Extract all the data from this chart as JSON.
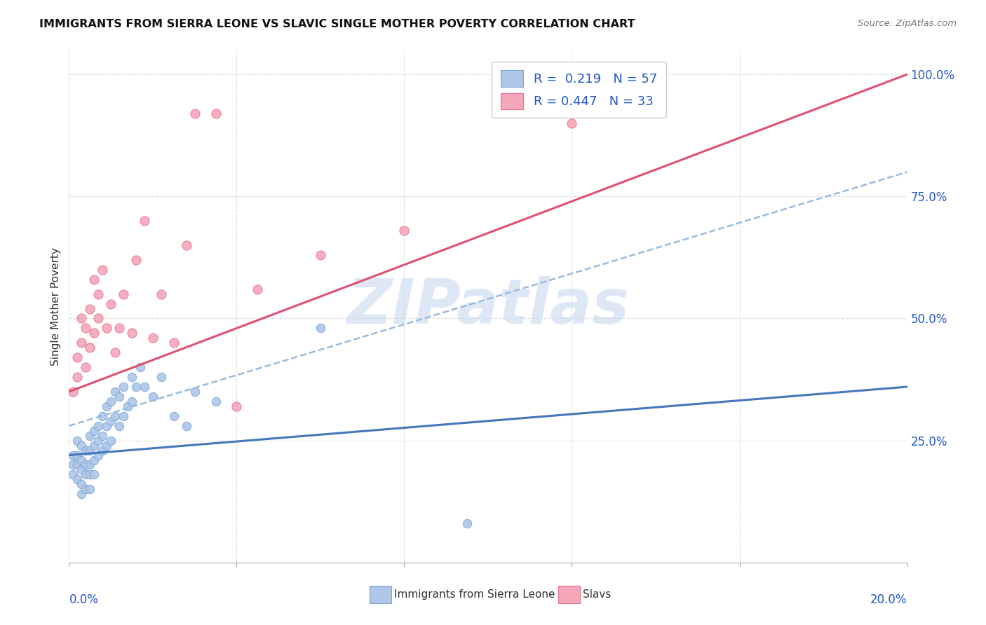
{
  "title": "IMMIGRANTS FROM SIERRA LEONE VS SLAVIC SINGLE MOTHER POVERTY CORRELATION CHART",
  "source": "Source: ZipAtlas.com",
  "ylabel": "Single Mother Poverty",
  "xlim": [
    0.0,
    0.2
  ],
  "ylim": [
    0.0,
    1.05
  ],
  "yticks": [
    0.25,
    0.5,
    0.75,
    1.0
  ],
  "ytick_labels": [
    "25.0%",
    "50.0%",
    "75.0%",
    "100.0%"
  ],
  "xtick_vals": [
    0.0,
    0.04,
    0.08,
    0.12,
    0.16,
    0.2
  ],
  "legend_line1": "R =  0.219   N = 57",
  "legend_line2": "R = 0.447   N = 33",
  "legend_color": "#2255cc",
  "watermark": "ZIPatlas",
  "watermark_color": "#c8d8f0",
  "series1_color": "#aec6e8",
  "series1_edge": "#7ba7d4",
  "series2_color": "#f4a7b9",
  "series2_edge": "#e87090",
  "trend1_color": "#4477bb",
  "trend2_color": "#e05070",
  "trend_dash_color": "#99bbdd",
  "blue_scatter_x": [
    0.001,
    0.001,
    0.001,
    0.002,
    0.002,
    0.002,
    0.002,
    0.003,
    0.003,
    0.003,
    0.003,
    0.003,
    0.004,
    0.004,
    0.004,
    0.004,
    0.005,
    0.005,
    0.005,
    0.005,
    0.005,
    0.006,
    0.006,
    0.006,
    0.006,
    0.007,
    0.007,
    0.007,
    0.008,
    0.008,
    0.008,
    0.009,
    0.009,
    0.009,
    0.01,
    0.01,
    0.01,
    0.011,
    0.011,
    0.012,
    0.012,
    0.013,
    0.013,
    0.014,
    0.015,
    0.015,
    0.016,
    0.017,
    0.018,
    0.02,
    0.022,
    0.025,
    0.028,
    0.03,
    0.035,
    0.06,
    0.095
  ],
  "blue_scatter_y": [
    0.22,
    0.2,
    0.18,
    0.25,
    0.22,
    0.2,
    0.17,
    0.24,
    0.21,
    0.19,
    0.16,
    0.14,
    0.23,
    0.2,
    0.18,
    0.15,
    0.26,
    0.23,
    0.2,
    0.18,
    0.15,
    0.27,
    0.24,
    0.21,
    0.18,
    0.28,
    0.25,
    0.22,
    0.3,
    0.26,
    0.23,
    0.32,
    0.28,
    0.24,
    0.33,
    0.29,
    0.25,
    0.35,
    0.3,
    0.34,
    0.28,
    0.36,
    0.3,
    0.32,
    0.38,
    0.33,
    0.36,
    0.4,
    0.36,
    0.34,
    0.38,
    0.3,
    0.28,
    0.35,
    0.33,
    0.48,
    0.08
  ],
  "pink_scatter_x": [
    0.001,
    0.002,
    0.002,
    0.003,
    0.003,
    0.004,
    0.004,
    0.005,
    0.005,
    0.006,
    0.006,
    0.007,
    0.007,
    0.008,
    0.009,
    0.01,
    0.011,
    0.012,
    0.013,
    0.015,
    0.016,
    0.018,
    0.02,
    0.022,
    0.025,
    0.028,
    0.03,
    0.035,
    0.04,
    0.045,
    0.06,
    0.08,
    0.12
  ],
  "pink_scatter_y": [
    0.35,
    0.38,
    0.42,
    0.45,
    0.5,
    0.4,
    0.48,
    0.52,
    0.44,
    0.58,
    0.47,
    0.55,
    0.5,
    0.6,
    0.48,
    0.53,
    0.43,
    0.48,
    0.55,
    0.47,
    0.62,
    0.7,
    0.46,
    0.55,
    0.45,
    0.65,
    0.92,
    0.92,
    0.32,
    0.56,
    0.63,
    0.68,
    0.9
  ],
  "trend1_x0": 0.0,
  "trend1_y0": 0.22,
  "trend1_x1": 0.2,
  "trend1_y1": 0.36,
  "trend2_x0": 0.0,
  "trend2_y0": 0.35,
  "trend2_x1": 0.2,
  "trend2_y1": 1.0,
  "trendd_x0": 0.0,
  "trendd_y0": 0.28,
  "trendd_x1": 0.2,
  "trendd_y1": 0.8
}
